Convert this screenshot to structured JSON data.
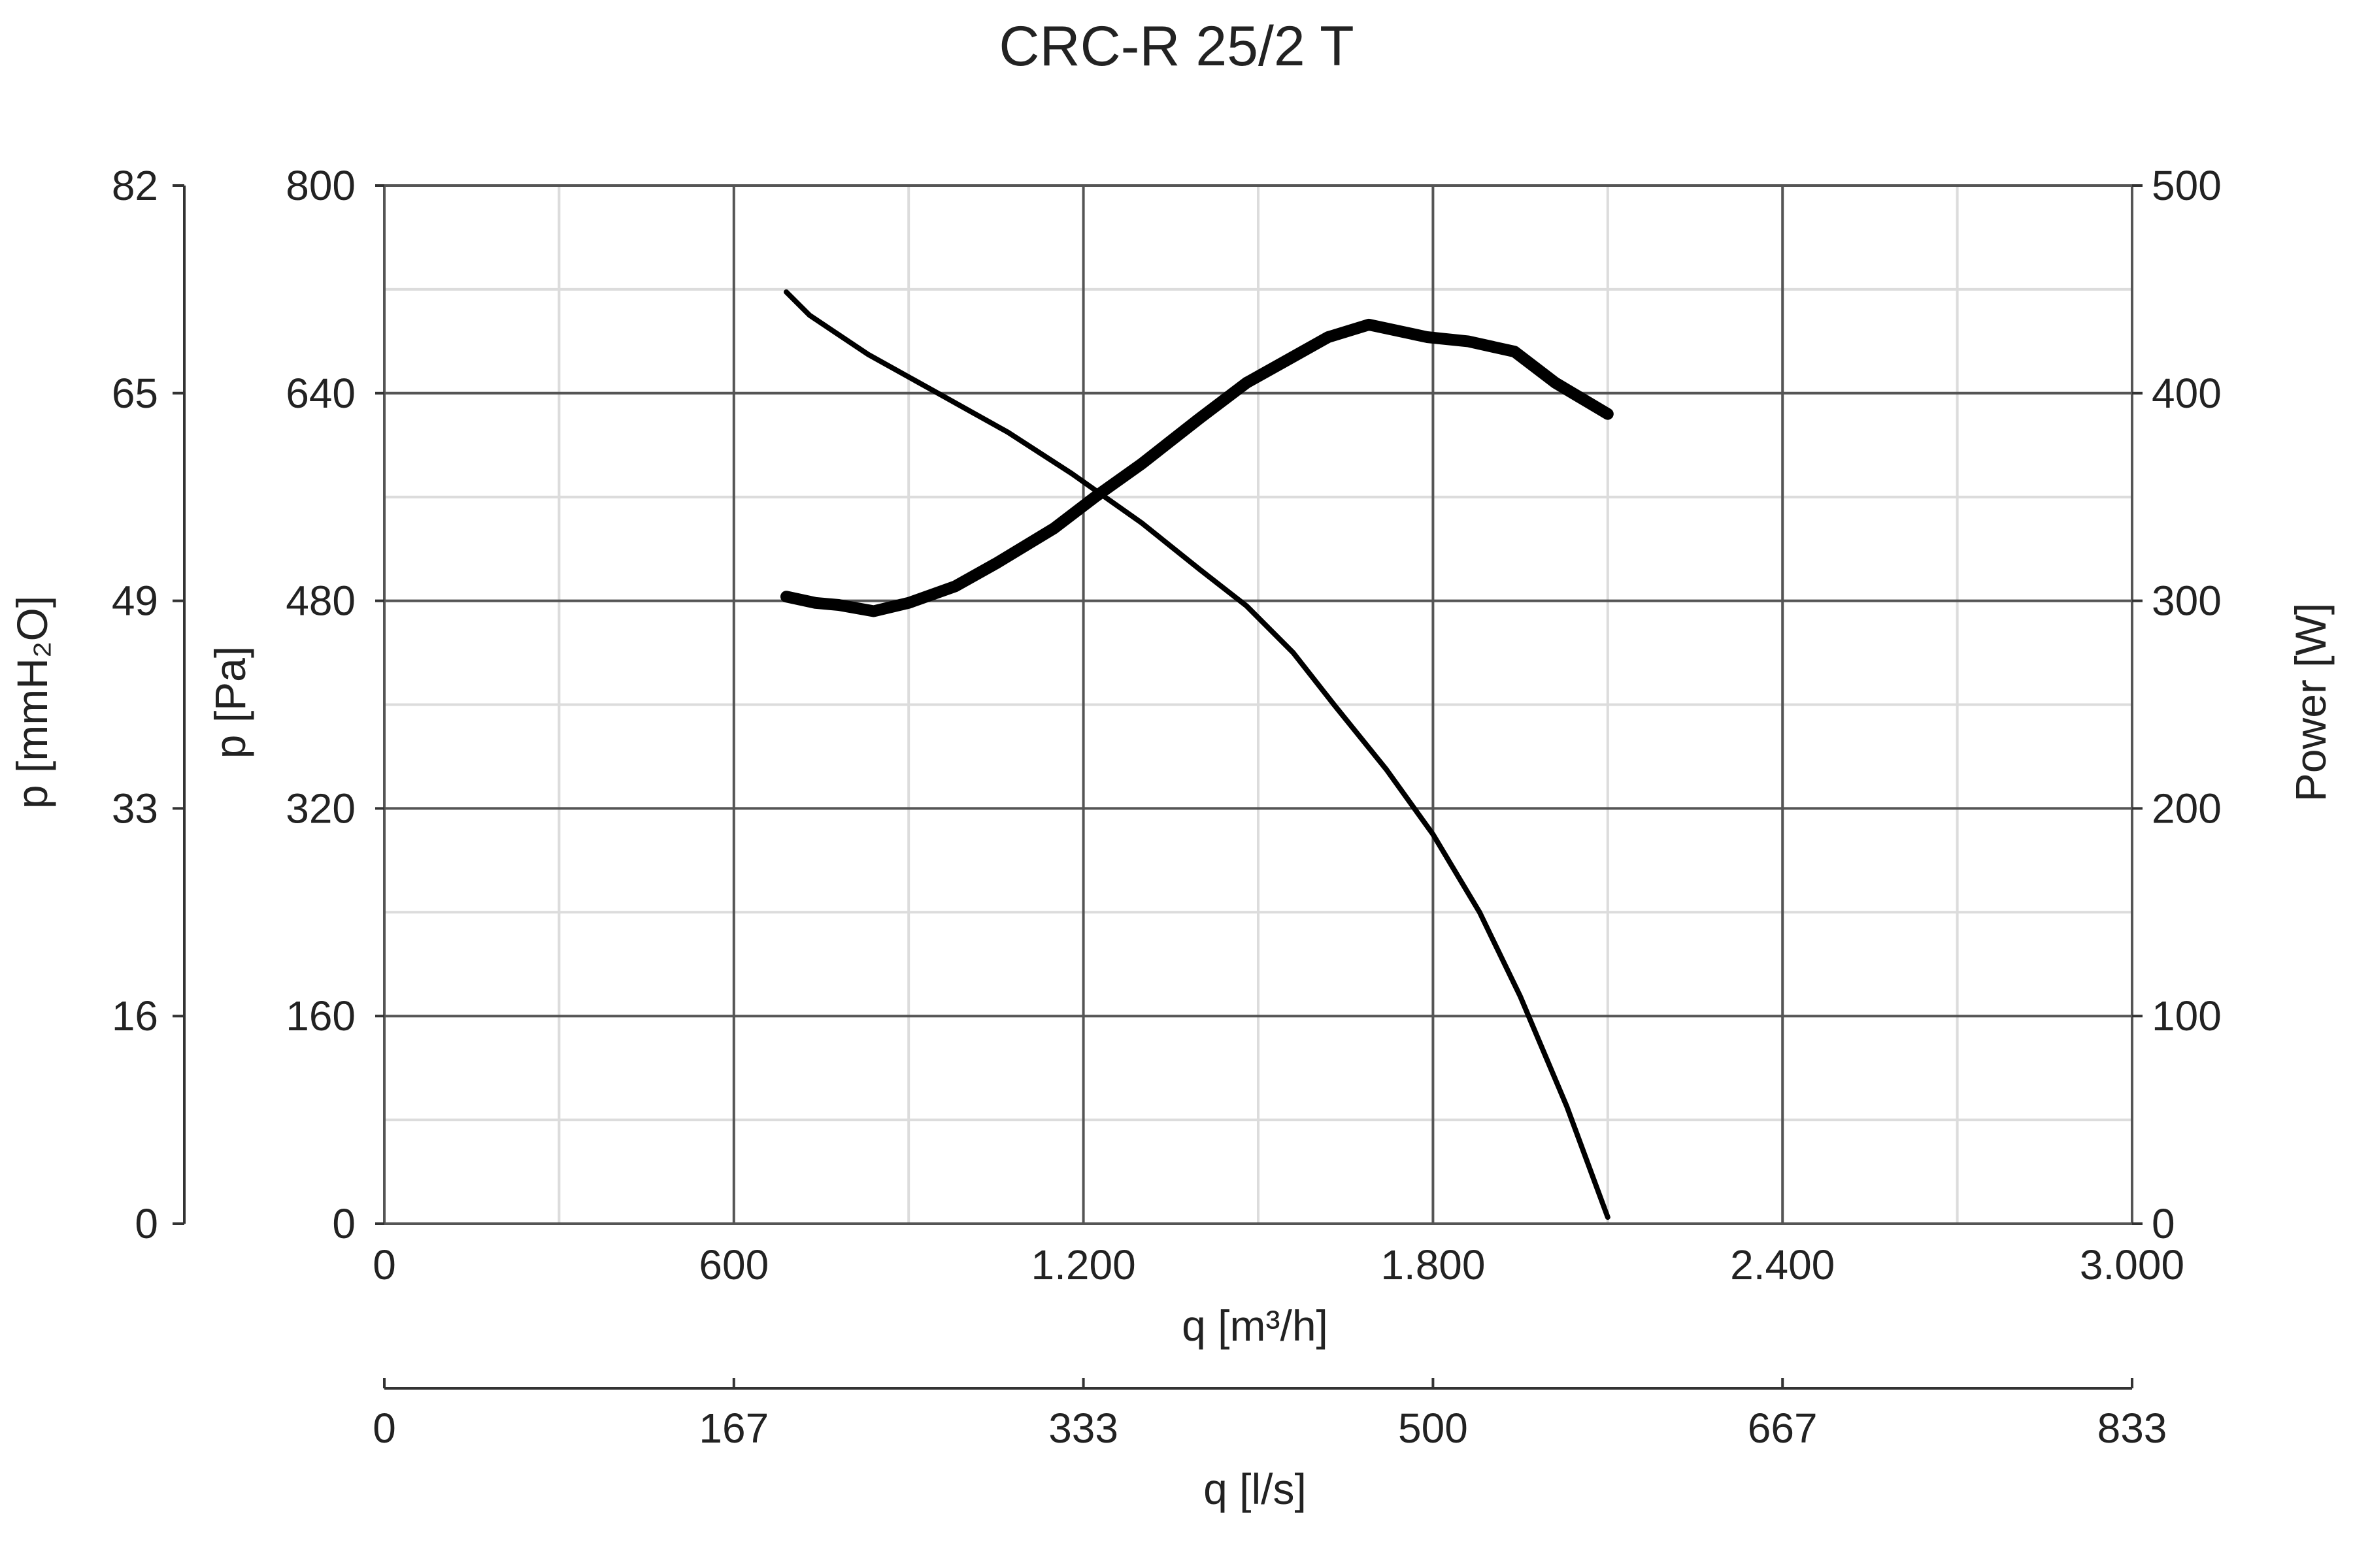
{
  "chart_data": {
    "type": "line",
    "title": "CRC-R 25/2 T",
    "xlabel": "q [m³/h]",
    "xlim": [
      0,
      3000
    ],
    "x_ticks": [
      "0",
      "600",
      "1.200",
      "1.800",
      "2.400",
      "3.000"
    ],
    "x2label": "q [l/s]",
    "x2_ticks": [
      "0",
      "167",
      "333",
      "500",
      "667",
      "833"
    ],
    "ylabel": "p [Pa]",
    "ylim": [
      0,
      800
    ],
    "y_ticks": [
      "0",
      "160",
      "320",
      "480",
      "640",
      "800"
    ],
    "y_outer_label": "p [mmH₂O]",
    "y_outer_ticks": [
      "0",
      "16",
      "33",
      "49",
      "65",
      "82"
    ],
    "y2label": "Power [W]",
    "y2lim": [
      0,
      500
    ],
    "y2_ticks": [
      "0",
      "100",
      "200",
      "300",
      "400",
      "500"
    ],
    "grid": true,
    "series": [
      {
        "axis": "pressure",
        "x": [
          690,
          730,
          830,
          950,
          1070,
          1180,
          1300,
          1400,
          1480,
          1560,
          1630,
          1720,
          1800,
          1880,
          1950,
          2030,
          2100
        ],
        "y": [
          718,
          700,
          670,
          640,
          610,
          578,
          540,
          504,
          476,
          440,
          400,
          350,
          300,
          240,
          175,
          90,
          5
        ]
      },
      {
        "axis": "power",
        "x": [
          690,
          740,
          780,
          840,
          900,
          980,
          1050,
          1150,
          1220,
          1300,
          1400,
          1480,
          1550,
          1620,
          1690,
          1790,
          1860,
          1940,
          2010,
          2100
        ],
        "y": [
          302,
          299,
          298,
          295,
          299,
          307,
          318,
          335,
          350,
          366,
          388,
          405,
          416,
          427,
          433,
          427,
          425,
          420,
          405,
          390
        ]
      }
    ]
  }
}
